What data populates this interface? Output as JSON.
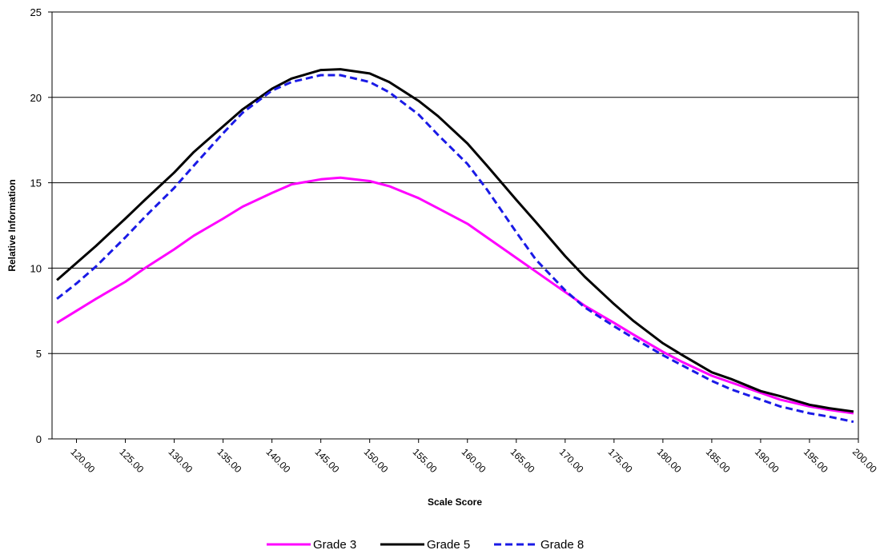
{
  "chart_data": {
    "type": "line",
    "xlabel": "Scale Score",
    "ylabel": "Relative Information",
    "xlim": [
      117.5,
      200
    ],
    "ylim": [
      0,
      25
    ],
    "y_ticks": [
      0,
      5,
      10,
      15,
      20,
      25
    ],
    "x_ticks": [
      "120.00",
      "125.00",
      "130.00",
      "135.00",
      "140.00",
      "145.00",
      "150.00",
      "155.00",
      "160.00",
      "165.00",
      "170.00",
      "175.00",
      "180.00",
      "185.00",
      "190.00",
      "195.00",
      "200.00"
    ],
    "grid": true,
    "legend_position": "bottom",
    "x": [
      118,
      120,
      122,
      125,
      127,
      130,
      132,
      135,
      137,
      140,
      142,
      145,
      147,
      150,
      152,
      155,
      157,
      160,
      162,
      165,
      167,
      170,
      172,
      175,
      177,
      180,
      182,
      185,
      187,
      190,
      192,
      195,
      197,
      199.5
    ],
    "series": [
      {
        "name": "Grade 3",
        "color": "#ff00ff",
        "dash": "solid",
        "values": [
          6.8,
          7.5,
          8.2,
          9.2,
          10.0,
          11.1,
          11.9,
          12.9,
          13.6,
          14.4,
          14.9,
          15.2,
          15.3,
          15.1,
          14.8,
          14.1,
          13.5,
          12.6,
          11.8,
          10.6,
          9.8,
          8.6,
          7.8,
          6.8,
          6.1,
          5.1,
          4.5,
          3.7,
          3.3,
          2.7,
          2.3,
          1.9,
          1.7,
          1.5
        ]
      },
      {
        "name": "Grade 5",
        "color": "#000000",
        "dash": "solid",
        "values": [
          9.3,
          10.3,
          11.3,
          12.9,
          14.0,
          15.6,
          16.8,
          18.3,
          19.3,
          20.5,
          21.1,
          21.6,
          21.65,
          21.4,
          20.9,
          19.8,
          18.9,
          17.3,
          16.0,
          14.0,
          12.7,
          10.7,
          9.5,
          7.9,
          6.9,
          5.6,
          4.9,
          3.9,
          3.5,
          2.8,
          2.5,
          2.0,
          1.8,
          1.6
        ]
      },
      {
        "name": "Grade 8",
        "color": "#1a1ae6",
        "dash": "dashed",
        "values": [
          8.2,
          9.1,
          10.1,
          11.8,
          13.0,
          14.7,
          16.0,
          17.9,
          19.1,
          20.4,
          20.9,
          21.3,
          21.3,
          20.9,
          20.3,
          19.0,
          17.8,
          16.1,
          14.6,
          12.1,
          10.5,
          8.7,
          7.7,
          6.6,
          5.9,
          4.9,
          4.3,
          3.4,
          2.9,
          2.3,
          1.9,
          1.5,
          1.3,
          1.0
        ]
      }
    ]
  }
}
